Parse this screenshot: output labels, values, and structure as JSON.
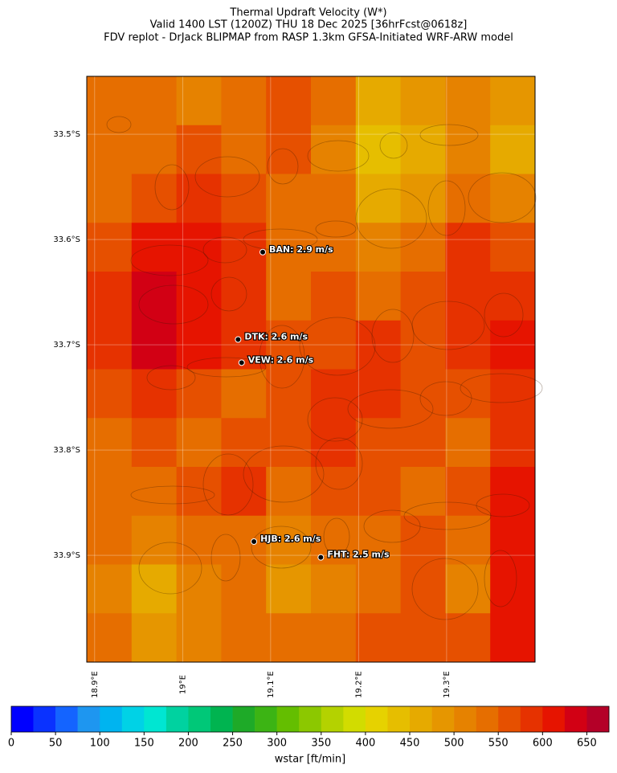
{
  "header": {
    "lines": [
      "Thermal Updraft Velocity (W*)",
      "Valid 1400 LST (1200Z) THU 18 Dec 2025 [36hrFcst@0618z]",
      "FDV replot - DrJack BLIPMAP from RASP 1.3km GFSA-Initiated WRF-ARW model"
    ]
  },
  "map": {
    "lonlim": [
      18.891,
      19.4005
    ],
    "latlim": [
      -33.445,
      -34.0015
    ],
    "lat_ticks": [
      {
        "value": -33.5,
        "label": "33.5°S"
      },
      {
        "value": -33.6,
        "label": "33.6°S"
      },
      {
        "value": -33.7,
        "label": "33.7°S"
      },
      {
        "value": -33.8,
        "label": "33.8°S"
      },
      {
        "value": -33.9,
        "label": "33.9°S"
      }
    ],
    "lon_ticks": [
      {
        "value": 18.9,
        "label": "18.9°E"
      },
      {
        "value": 19.0,
        "label": "19°E"
      },
      {
        "value": 19.1,
        "label": "19.1°E"
      },
      {
        "value": 19.2,
        "label": "19.2°E"
      },
      {
        "value": 19.3,
        "label": "19.3°E"
      }
    ],
    "wstar_grid": [
      [
        525,
        525,
        500,
        525,
        550,
        525,
        450,
        475,
        500,
        475
      ],
      [
        525,
        525,
        550,
        525,
        550,
        500,
        425,
        450,
        500,
        450
      ],
      [
        525,
        550,
        575,
        550,
        525,
        525,
        450,
        475,
        525,
        500
      ],
      [
        550,
        600,
        600,
        575,
        525,
        525,
        500,
        525,
        575,
        550
      ],
      [
        575,
        625,
        600,
        575,
        525,
        550,
        525,
        550,
        575,
        575
      ],
      [
        575,
        625,
        600,
        575,
        550,
        550,
        575,
        550,
        575,
        600
      ],
      [
        550,
        575,
        550,
        525,
        550,
        575,
        575,
        550,
        550,
        575
      ],
      [
        525,
        550,
        525,
        550,
        550,
        575,
        550,
        550,
        525,
        575
      ],
      [
        525,
        525,
        550,
        575,
        525,
        550,
        550,
        525,
        550,
        600
      ],
      [
        525,
        500,
        525,
        525,
        500,
        525,
        525,
        550,
        525,
        600
      ],
      [
        500,
        450,
        500,
        525,
        475,
        500,
        525,
        550,
        500,
        600
      ],
      [
        525,
        475,
        500,
        525,
        525,
        525,
        550,
        550,
        550,
        600
      ]
    ],
    "stations": [
      {
        "label": "BAN: 2.9 m/s",
        "lon": 19.091,
        "lat": -33.612
      },
      {
        "label": "DTK: 2.6 m/s",
        "lon": 19.063,
        "lat": -33.695
      },
      {
        "label": "VEW: 2.6 m/s",
        "lon": 19.067,
        "lat": -33.717
      },
      {
        "label": "HJB: 2.6 m/s",
        "lon": 19.081,
        "lat": -33.887
      },
      {
        "label": "FHT: 2.5 m/s",
        "lon": 19.157,
        "lat": -33.902
      }
    ]
  },
  "colorbar": {
    "label": "wstar [ft/min]",
    "lim": [
      0,
      675
    ],
    "step": 25,
    "colors": [
      "#0000ff",
      "#0a32ff",
      "#1464ff",
      "#1e96f0",
      "#00b4f0",
      "#00d2e6",
      "#00e6d2",
      "#00d2a0",
      "#00c878",
      "#00b450",
      "#1eaa28",
      "#3cb414",
      "#64be00",
      "#8cc800",
      "#b4d200",
      "#d2dc00",
      "#e6d200",
      "#e6be00",
      "#e6aa00",
      "#e69600",
      "#e68200",
      "#e66e00",
      "#e65000",
      "#e63200",
      "#e61400",
      "#d20014",
      "#b40028"
    ],
    "ticks": [
      0,
      50,
      100,
      150,
      200,
      250,
      300,
      350,
      400,
      450,
      500,
      550,
      600,
      650
    ]
  }
}
